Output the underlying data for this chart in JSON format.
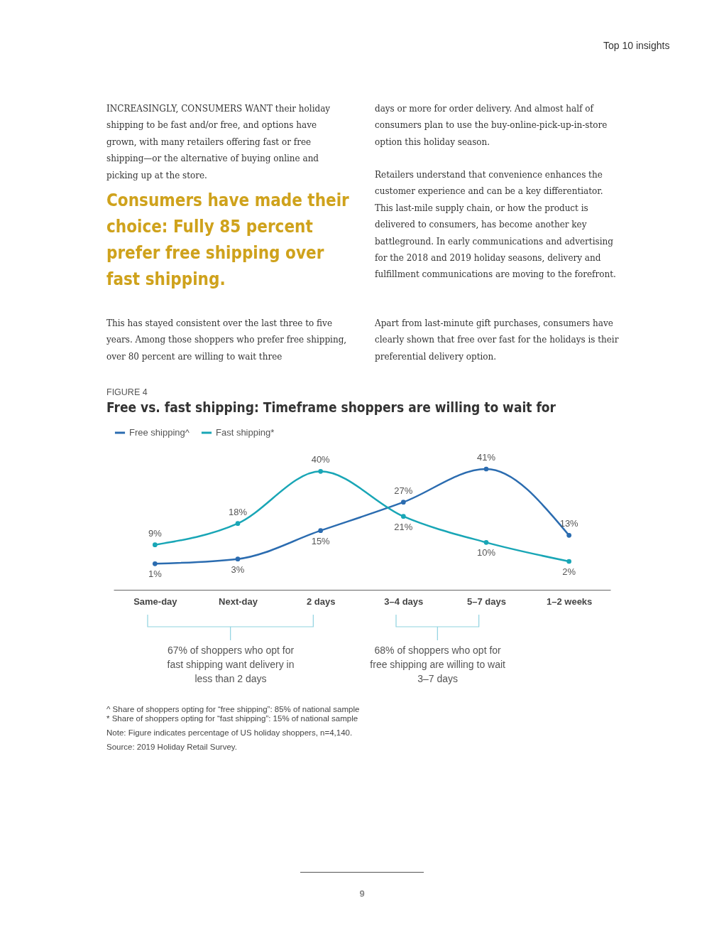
{
  "chart_data": {
    "type": "line",
    "title": "Free vs. fast shipping: Timeframe shoppers are willing to wait for",
    "categories": [
      "Same-day",
      "Next-day",
      "2 days",
      "3–4 days",
      "5–7 days",
      "1–2 weeks"
    ],
    "series": [
      {
        "name": "Free shipping^",
        "color": "#2b6cb0",
        "values": [
          1,
          3,
          15,
          27,
          41,
          13
        ],
        "value_labels": [
          "1%",
          "3%",
          "15%",
          "27%",
          "41%",
          "13%"
        ]
      },
      {
        "name": "Fast shipping*",
        "color": "#19a6b6",
        "values": [
          9,
          18,
          40,
          21,
          10,
          2
        ],
        "value_labels": [
          "9%",
          "18%",
          "40%",
          "21%",
          "10%",
          "2%"
        ]
      }
    ],
    "legend": "top left",
    "marker": "circle",
    "line_style": "solid",
    "grid": false,
    "annotations": [
      "Top 10 insights",
      "INCREASINGLY, CONSUMERS WANT their holiday shipping to be fast and/or free, and options have grown, with many retailers offering fast or free shipping—or the alternative of buying online and picking up at the store.",
      "Consumers have made their choice: Fully 85 percent prefer free shipping over fast shipping.",
      "This has stayed consistent over the last three to five years. Among those shoppers who prefer free shipping, over 80 percent are willing to wait three",
      "days or more for order delivery. And almost half of consumers plan to use the buy-online-pick-up-in-store option this holiday season.",
      "Retailers understand that convenience enhances the customer experience and can be a key differentiator. This last-mile supply chain, or how the product is delivered to consumers, has become another key battleground. In early communications and advertising for the 2018 and 2019 holiday seasons, delivery and fulfillment communications are moving to the forefront.",
      "Apart from last-minute gift purchases, consumers have clearly shown that free over fast for the holidays is their preferential delivery option.",
      "FIGURE 4",
      "67% of shoppers who opt for fast shipping want delivery in less than 2 days",
      "68% of shoppers who opt for free shipping are willing to wait 3–7 days",
      "^ Share of shoppers opting for “free shipping”: 85% of national sample",
      "* Share of shoppers opting for “fast shipping”: 15% of national sample",
      "Note: Figure indicates percentage of US holiday shoppers, n=4,140.",
      "Source: 2019 Holiday Retail Survey.",
      "9"
    ]
  }
}
